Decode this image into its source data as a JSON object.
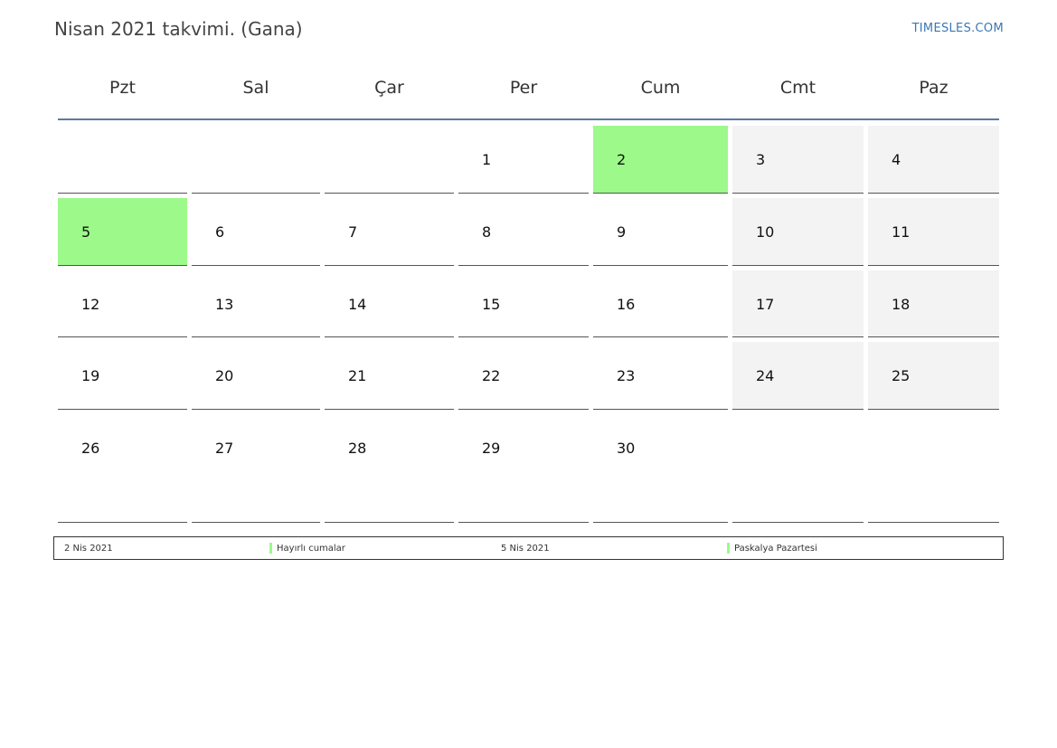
{
  "title": "Nisan 2021 takvimi. (Gana)",
  "brand": "TIMESLES.COM",
  "weekdays": [
    "Pzt",
    "Sal",
    "Çar",
    "Per",
    "Cum",
    "Cmt",
    "Paz"
  ],
  "colors": {
    "holiday": "#9cf98a",
    "weekend": "#f3f3f3",
    "header_line": "#5b7aa3",
    "brand": "#3a78b5"
  },
  "weeks": [
    [
      "",
      "",
      "",
      "1",
      "2",
      "3",
      "4"
    ],
    [
      "5",
      "6",
      "7",
      "8",
      "9",
      "10",
      "11"
    ],
    [
      "12",
      "13",
      "14",
      "15",
      "16",
      "17",
      "18"
    ],
    [
      "19",
      "20",
      "21",
      "22",
      "23",
      "24",
      "25"
    ],
    [
      "26",
      "27",
      "28",
      "29",
      "30",
      "",
      ""
    ]
  ],
  "holiday_days": [
    "2",
    "5"
  ],
  "legend": [
    {
      "date": "2 Nis 2021",
      "name": "Hayırlı cumalar"
    },
    {
      "date": "5 Nis 2021",
      "name": "Paskalya Pazartesi"
    }
  ]
}
